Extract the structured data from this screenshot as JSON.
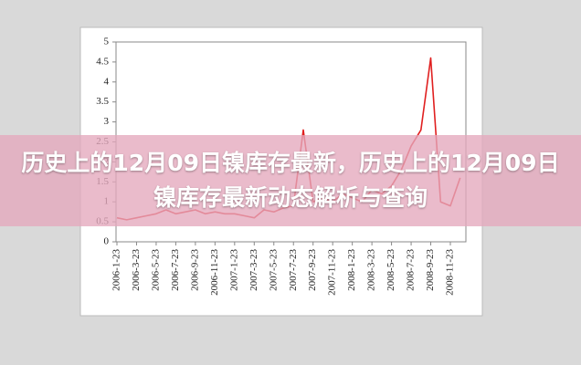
{
  "chart_data": {
    "type": "line",
    "title": "历史上的12月09日镍库存最新，历史上的12月09日镍库存最新动态解析与查询",
    "categories": [
      "2006-1-23",
      null,
      "2006-3-23",
      null,
      "2006-5-23",
      null,
      "2006-7-23",
      null,
      "2006-9-23",
      null,
      "2006-11-23",
      null,
      "2007-1-23",
      null,
      "2007-3-23",
      null,
      "2007-5-23",
      null,
      "2007-7-23",
      null,
      "2007-9-23",
      null,
      "2007-11-23",
      null,
      "2008-1-23",
      null,
      "2008-3-23",
      null,
      "2008-5-23",
      null,
      "2008-7-23",
      null,
      "2008-9-23",
      null,
      "2008-11-23",
      null
    ],
    "values": [
      0.6,
      0.55,
      0.6,
      0.65,
      0.7,
      0.8,
      0.7,
      0.75,
      0.8,
      0.7,
      0.75,
      0.7,
      0.7,
      0.65,
      0.6,
      0.8,
      0.75,
      0.85,
      0.9,
      2.8,
      1.0,
      1.1,
      1.0,
      1.2,
      1.1,
      1.0,
      1.3,
      1.2,
      1.4,
      1.8,
      2.4,
      2.8,
      4.6,
      1.0,
      0.9,
      1.6
    ],
    "color": "#e02020",
    "ylim": [
      0,
      5
    ],
    "yticks": [
      0,
      0.5,
      1,
      1.5,
      2,
      2.5,
      3,
      3.5,
      4,
      4.5,
      5
    ],
    "grid": false
  }
}
